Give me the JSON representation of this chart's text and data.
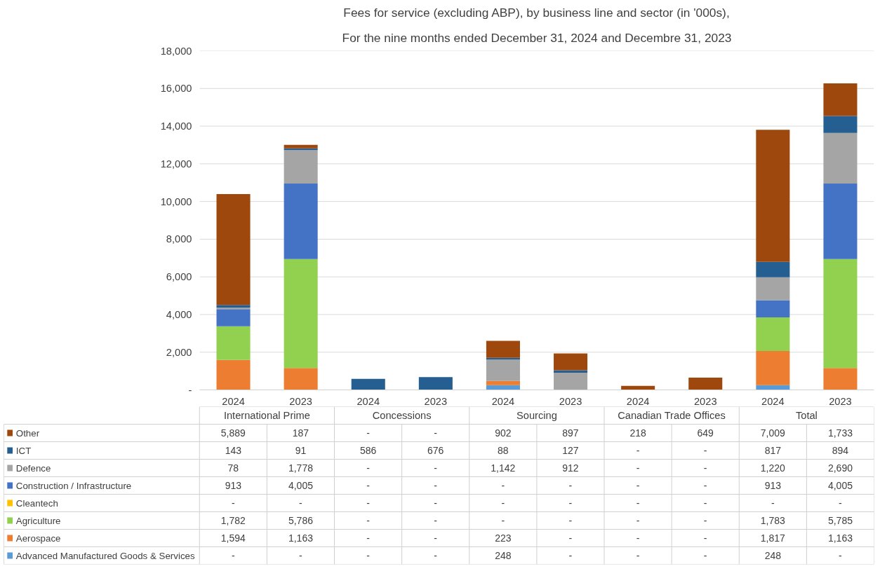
{
  "chart_data": {
    "type": "bar",
    "stacked": true,
    "title": "Fees for service (excluding ABP), by business line and sector (in '000s),",
    "subtitle": "For the nine months ended December 31, 2024 and Decembre 31, 2023",
    "categories": [
      "2024",
      "2023",
      "2024",
      "2023",
      "2024",
      "2023",
      "2024",
      "2023",
      "2024",
      "2023"
    ],
    "annotations": [
      "International Prime",
      "Concessions",
      "Sourcing",
      "Canadian Trade Offices",
      "Total"
    ],
    "ylim": [
      0,
      18000
    ],
    "yticks": [
      {
        "value": 0,
        "label": "-"
      },
      {
        "value": 2000,
        "label": "2,000"
      },
      {
        "value": 4000,
        "label": "4,000"
      },
      {
        "value": 6000,
        "label": "6,000"
      },
      {
        "value": 8000,
        "label": "8,000"
      },
      {
        "value": 10000,
        "label": "10,000"
      },
      {
        "value": 12000,
        "label": "12,000"
      },
      {
        "value": 14000,
        "label": "14,000"
      },
      {
        "value": 16000,
        "label": "16,000"
      },
      {
        "value": 18000,
        "label": "18,000"
      }
    ],
    "grid": "y",
    "legend": "bottom",
    "series": [
      {
        "name": "Advanced Manufactured Goods & Services",
        "color": "#5b9bd5",
        "values": [
          null,
          null,
          null,
          null,
          248,
          null,
          null,
          null,
          248,
          null
        ],
        "value_labels": [
          "-",
          "-",
          "-",
          "-",
          "248",
          "-",
          "-",
          "-",
          "248",
          "-"
        ]
      },
      {
        "name": "Aerospace",
        "color": "#ed7d31",
        "values": [
          1594,
          1163,
          null,
          null,
          223,
          null,
          null,
          null,
          1817,
          1163
        ],
        "value_labels": [
          "1,594",
          "1,163",
          "-",
          "-",
          "223",
          "-",
          "-",
          "-",
          "1,817",
          "1,163"
        ]
      },
      {
        "name": "Agriculture",
        "color": "#92d050",
        "values": [
          1782,
          5786,
          null,
          null,
          null,
          null,
          null,
          null,
          1783,
          5785
        ],
        "value_labels": [
          "1,782",
          "5,786",
          "-",
          "-",
          "-",
          "-",
          "-",
          "-",
          "1,783",
          "5,785"
        ]
      },
      {
        "name": "Cleantech",
        "color": "#ffc000",
        "values": [
          null,
          null,
          null,
          null,
          null,
          null,
          null,
          null,
          null,
          null
        ],
        "value_labels": [
          "-",
          "-",
          "-",
          "-",
          "-",
          "-",
          "-",
          "-",
          "-",
          "-"
        ]
      },
      {
        "name": "Construction / Infrastructure",
        "color": "#4472c4",
        "values": [
          913,
          4005,
          null,
          null,
          null,
          null,
          null,
          null,
          913,
          4005
        ],
        "value_labels": [
          "913",
          "4,005",
          "-",
          "-",
          "-",
          "-",
          "-",
          "-",
          "913",
          "4,005"
        ]
      },
      {
        "name": "Defence",
        "color": "#a5a5a5",
        "values": [
          78,
          1778,
          null,
          null,
          1142,
          912,
          null,
          null,
          1220,
          2690
        ],
        "value_labels": [
          "78",
          "1,778",
          "-",
          "-",
          "1,142",
          "912",
          "-",
          "-",
          "1,220",
          "2,690"
        ]
      },
      {
        "name": "ICT",
        "color": "#255e91",
        "values": [
          143,
          91,
          586,
          676,
          88,
          127,
          null,
          null,
          817,
          894
        ],
        "value_labels": [
          "143",
          "91",
          "586",
          "676",
          "88",
          "127",
          "-",
          "-",
          "817",
          "894"
        ]
      },
      {
        "name": "Other",
        "color": "#9e480e",
        "values": [
          5889,
          187,
          null,
          null,
          902,
          897,
          218,
          649,
          7009,
          1733
        ],
        "value_labels": [
          "5,889",
          "187",
          "-",
          "-",
          "902",
          "897",
          "218",
          "649",
          "7,009",
          "1,733"
        ]
      }
    ]
  }
}
